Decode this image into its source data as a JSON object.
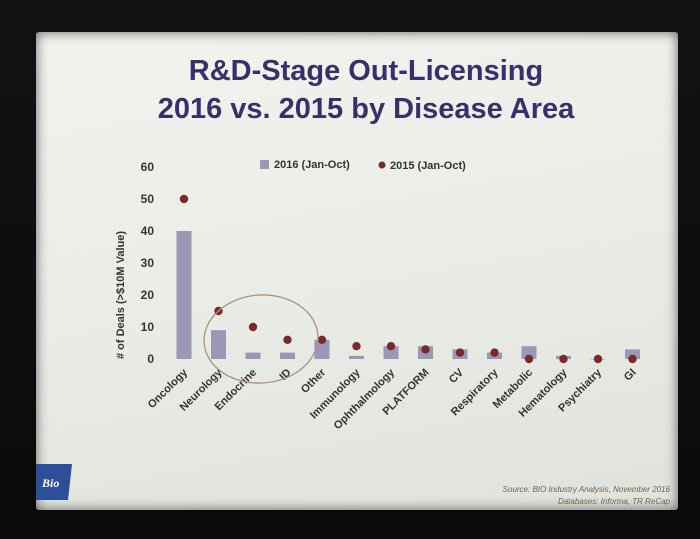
{
  "chart_data": {
    "type": "bar",
    "title_line1": "R&D-Stage Out-Licensing",
    "title_line2": "2016 vs. 2015 by Disease Area",
    "ylabel": "# of Deals (>$10M Value)",
    "ylim": [
      0,
      60
    ],
    "yticks": [
      "0",
      "10",
      "20",
      "30",
      "40",
      "50",
      "60"
    ],
    "categories": [
      "Oncology",
      "Neurology",
      "Endocrine",
      "ID",
      "Other",
      "Immunology",
      "Ophthalmology",
      "PLATFORM",
      "CV",
      "Respiratory",
      "Metabolic",
      "Hematology",
      "Psychiatry",
      "GI"
    ],
    "series": [
      {
        "name": "2016 (Jan-Oct)",
        "kind": "bar",
        "color": "#9a98b4",
        "values": [
          40,
          9,
          2,
          2,
          6,
          1,
          4,
          4,
          3,
          2,
          4,
          1,
          0,
          3
        ]
      },
      {
        "name": "2015 (Jan-Oct)",
        "kind": "dot",
        "color": "#7a2a2a",
        "values": [
          50,
          15,
          10,
          6,
          6,
          4,
          4,
          3,
          2,
          2,
          0,
          0,
          0,
          0
        ]
      }
    ],
    "legend_position": "top-center",
    "annotation": "ellipse around Neurology, Endocrine, ID"
  },
  "footer": {
    "source_line1": "Source: BIO Industry Analysis, November 2016",
    "source_line2": "Databases: Informa, TR ReCap"
  },
  "logo": {
    "text": "Bio"
  },
  "colors": {
    "title": "#3a2f6a",
    "bar": "#9a98b4",
    "dot": "#7a2a2a",
    "ellipse": "#b08f7c"
  }
}
